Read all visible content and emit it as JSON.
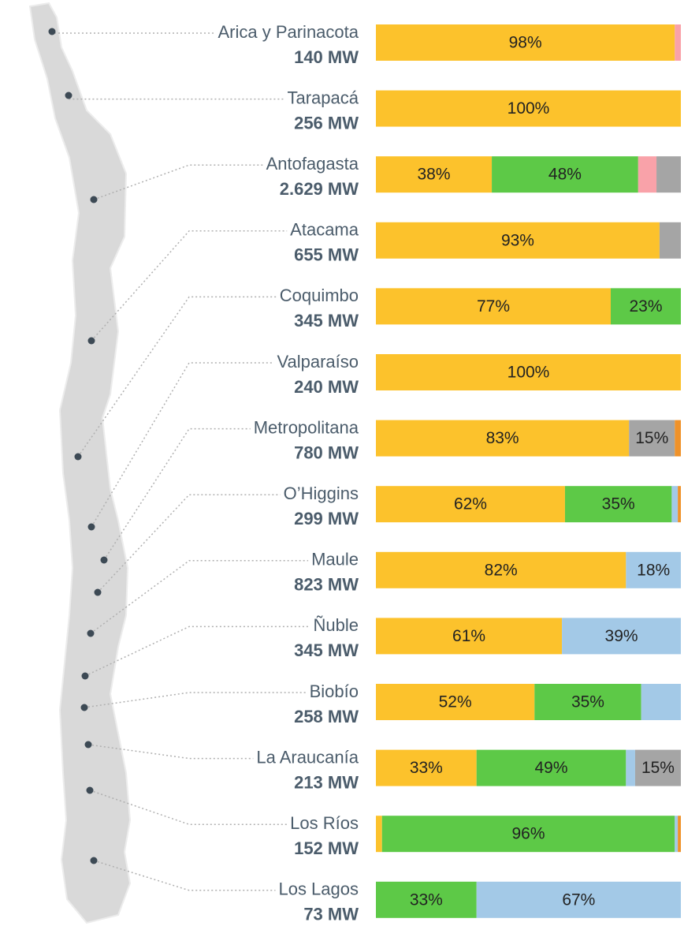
{
  "chart_data": {
    "type": "stacked-bar-horizontal",
    "categories": [
      "Arica y Parinacota",
      "Tarapacá",
      "Antofagasta",
      "Atacama",
      "Coquimbo",
      "Valparaíso",
      "Metropolitana",
      "O’Higgins",
      "Maule",
      "Ñuble",
      "Biobío",
      "La Araucanía",
      "Los Ríos",
      "Los Lagos"
    ],
    "capacity": [
      {
        "value": 140,
        "label": "140 MW"
      },
      {
        "value": 256,
        "label": "256 MW"
      },
      {
        "value": 2629,
        "label": "2.629 MW"
      },
      {
        "value": 655,
        "label": "655 MW"
      },
      {
        "value": 345,
        "label": "345 MW"
      },
      {
        "value": 240,
        "label": "240 MW"
      },
      {
        "value": 780,
        "label": "780 MW"
      },
      {
        "value": 299,
        "label": "299 MW"
      },
      {
        "value": 823,
        "label": "823 MW"
      },
      {
        "value": 345,
        "label": "345 MW"
      },
      {
        "value": 258,
        "label": "258 MW"
      },
      {
        "value": 213,
        "label": "213 MW"
      },
      {
        "value": 152,
        "label": "152 MW"
      },
      {
        "value": 73,
        "label": "73 MW"
      }
    ],
    "xlim": [
      0,
      100
    ],
    "series": [
      {
        "color": "#fcc22c",
        "values": [
          98,
          100,
          38,
          93,
          77,
          100,
          83,
          62,
          82,
          61,
          52,
          33,
          2,
          null
        ],
        "value_labels": [
          "98%",
          "100%",
          "38%",
          "93%",
          "77%",
          "100%",
          "83%",
          "62%",
          "82%",
          "61%",
          "52%",
          "33%",
          null,
          null
        ]
      },
      {
        "color": "#5dc947",
        "values": [
          null,
          null,
          48,
          null,
          23,
          null,
          null,
          35,
          null,
          null,
          35,
          49,
          96,
          33
        ],
        "value_labels": [
          null,
          null,
          "48%",
          null,
          "23%",
          null,
          null,
          "35%",
          null,
          null,
          "35%",
          "49%",
          "96%",
          "33%"
        ]
      },
      {
        "color": "#a3c9e7",
        "values": [
          null,
          null,
          null,
          null,
          null,
          null,
          null,
          2,
          18,
          39,
          13,
          3,
          1,
          67
        ],
        "value_labels": [
          null,
          null,
          null,
          null,
          null,
          null,
          null,
          null,
          "18%",
          "39%",
          null,
          null,
          null,
          "67%"
        ]
      },
      {
        "color": "#f9a2a9",
        "values": [
          2,
          null,
          6,
          null,
          null,
          null,
          null,
          null,
          null,
          null,
          null,
          null,
          null,
          null
        ],
        "value_labels": [
          null,
          null,
          null,
          null,
          null,
          null,
          null,
          null,
          null,
          null,
          null,
          null,
          null,
          null
        ]
      },
      {
        "color": "#a5a5a5",
        "values": [
          null,
          null,
          8,
          7,
          null,
          null,
          15,
          null,
          null,
          null,
          null,
          15,
          null,
          null
        ],
        "value_labels": [
          null,
          null,
          null,
          null,
          null,
          null,
          "15%",
          null,
          null,
          null,
          null,
          "15%",
          null,
          null
        ]
      },
      {
        "color": "#ef922a",
        "values": [
          null,
          null,
          null,
          null,
          null,
          null,
          2,
          1,
          null,
          null,
          null,
          null,
          1,
          null
        ],
        "value_labels": [
          null,
          null,
          null,
          null,
          null,
          null,
          null,
          null,
          null,
          null,
          null,
          null,
          null,
          null
        ]
      }
    ]
  }
}
